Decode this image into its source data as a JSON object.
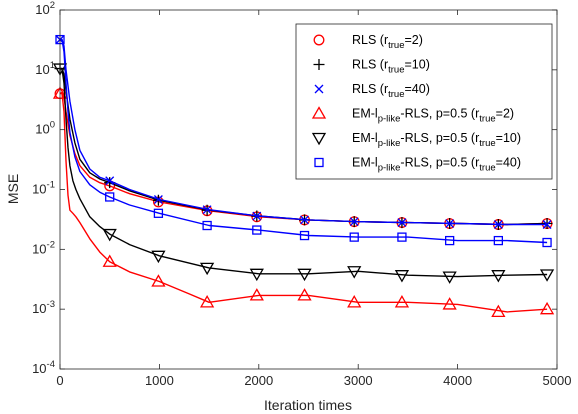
{
  "chart_data": {
    "type": "line",
    "xlabel": "Iteration times",
    "ylabel": "MSE",
    "xlim": [
      0,
      5000
    ],
    "ylim": [
      0.0001,
      100
    ],
    "y_scale": "log",
    "x_ticks": [
      0,
      1000,
      2000,
      3000,
      4000,
      5000
    ],
    "x_tick_labels": [
      "0",
      "1000",
      "2000",
      "3000",
      "4000",
      "5000"
    ],
    "y_ticks": [
      0.0001,
      0.001,
      0.01,
      0.1,
      1,
      10,
      100
    ],
    "y_tick_labels": [
      {
        "base": "10",
        "exp": "-4"
      },
      {
        "base": "10",
        "exp": "-3"
      },
      {
        "base": "10",
        "exp": "-2"
      },
      {
        "base": "10",
        "exp": "-1"
      },
      {
        "base": "10",
        "exp": "0"
      },
      {
        "base": "10",
        "exp": "1"
      },
      {
        "base": "10",
        "exp": "2"
      }
    ],
    "grid": false,
    "legend_position": "top-right",
    "series": [
      {
        "legend": {
          "main": "RLS (r",
          "sub": "true",
          "tail": "=2)"
        },
        "color": "#ff0000",
        "marker": "circle",
        "x": [
          0,
          20,
          40,
          60,
          100,
          150,
          200,
          300,
          400,
          500,
          700,
          1000,
          1500,
          2000,
          2500,
          3000,
          3500,
          4000,
          4500,
          4900
        ],
        "y": [
          4.0,
          4.2,
          3.5,
          2.0,
          0.8,
          0.4,
          0.25,
          0.16,
          0.13,
          0.115,
          0.085,
          0.062,
          0.044,
          0.035,
          0.031,
          0.029,
          0.028,
          0.027,
          0.026,
          0.027
        ],
        "marker_x": [
          0,
          500,
          990,
          1480,
          1980,
          2460,
          2960,
          3440,
          3920,
          4410,
          4900
        ],
        "marker_y": [
          4.0,
          0.115,
          0.062,
          0.044,
          0.035,
          0.031,
          0.029,
          0.028,
          0.027,
          0.026,
          0.027
        ]
      },
      {
        "legend": {
          "main": "RLS (r",
          "sub": "true",
          "tail": "=10)"
        },
        "color": "#000000",
        "marker": "plus",
        "x": [
          0,
          20,
          40,
          60,
          100,
          150,
          200,
          300,
          400,
          500,
          700,
          1000,
          1500,
          2000,
          2500,
          3000,
          3500,
          4000,
          4500,
          4900
        ],
        "y": [
          10.5,
          10.5,
          8.5,
          4.5,
          1.5,
          0.6,
          0.32,
          0.19,
          0.15,
          0.13,
          0.095,
          0.066,
          0.045,
          0.036,
          0.031,
          0.029,
          0.028,
          0.027,
          0.026,
          0.027
        ],
        "marker_x": [
          0,
          500,
          990,
          1480,
          1980,
          2460,
          2960,
          3440,
          3920,
          4410,
          4900
        ],
        "marker_y": [
          10.5,
          0.13,
          0.066,
          0.045,
          0.036,
          0.031,
          0.029,
          0.028,
          0.027,
          0.026,
          0.027
        ]
      },
      {
        "legend": {
          "main": "RLS (r",
          "sub": "true",
          "tail": "=40)"
        },
        "color": "#0000ff",
        "marker": "x",
        "x": [
          0,
          20,
          40,
          60,
          100,
          150,
          200,
          300,
          400,
          500,
          700,
          1000,
          1500,
          2000,
          2500,
          3000,
          3500,
          4000,
          4500,
          4900
        ],
        "y": [
          32,
          32,
          25,
          10,
          3.0,
          1.0,
          0.45,
          0.22,
          0.16,
          0.14,
          0.1,
          0.068,
          0.046,
          0.036,
          0.031,
          0.029,
          0.028,
          0.027,
          0.026,
          0.026
        ],
        "marker_x": [
          0,
          500,
          990,
          1480,
          1980,
          2460,
          2960,
          3440,
          3920,
          4410,
          4900
        ],
        "marker_y": [
          32,
          0.14,
          0.068,
          0.046,
          0.036,
          0.031,
          0.029,
          0.028,
          0.027,
          0.026,
          0.026
        ]
      },
      {
        "legend": {
          "main": "EM-l",
          "sub": "p-like",
          "tail": "-RLS, p=0.5 (r",
          "sub2": "true",
          "tail2": "=2)"
        },
        "color": "#ff0000",
        "marker": "triangle-up",
        "x": [
          0,
          20,
          40,
          60,
          80,
          100,
          130,
          160,
          200,
          300,
          400,
          500,
          700,
          1000,
          1300,
          1500,
          2000,
          2500,
          3000,
          3500,
          4000,
          4500,
          4900
        ],
        "y": [
          4.0,
          4.0,
          2.0,
          0.3,
          0.08,
          0.045,
          0.04,
          0.035,
          0.028,
          0.015,
          0.009,
          0.0062,
          0.0042,
          0.0029,
          0.0018,
          0.0013,
          0.0017,
          0.0017,
          0.0013,
          0.0013,
          0.0012,
          0.0009,
          0.001
        ],
        "marker_x": [
          0,
          500,
          990,
          1480,
          1980,
          2460,
          2960,
          3440,
          3920,
          4410,
          4900
        ],
        "marker_y": [
          4.0,
          0.0062,
          0.0029,
          0.0013,
          0.0017,
          0.0017,
          0.0013,
          0.0013,
          0.0012,
          0.0009,
          0.001
        ]
      },
      {
        "legend": {
          "main": "EM-l",
          "sub": "p-like",
          "tail": "-RLS, p=0.5 (r",
          "sub2": "true",
          "tail2": "=10)"
        },
        "color": "#000000",
        "marker": "triangle-down",
        "x": [
          0,
          20,
          40,
          60,
          80,
          100,
          130,
          160,
          200,
          300,
          400,
          500,
          700,
          1000,
          1500,
          2000,
          2500,
          3000,
          3500,
          4000,
          4500,
          4900
        ],
        "y": [
          10.5,
          10.5,
          6.0,
          1.5,
          0.5,
          0.25,
          0.14,
          0.1,
          0.07,
          0.035,
          0.024,
          0.018,
          0.012,
          0.0078,
          0.0049,
          0.0039,
          0.0039,
          0.0043,
          0.0037,
          0.0035,
          0.0037,
          0.0038
        ],
        "marker_x": [
          0,
          500,
          990,
          1480,
          1980,
          2460,
          2960,
          3440,
          3920,
          4410,
          4900
        ],
        "marker_y": [
          10.5,
          0.018,
          0.0078,
          0.0049,
          0.0039,
          0.0039,
          0.0043,
          0.0037,
          0.0035,
          0.0037,
          0.0038
        ]
      },
      {
        "legend": {
          "main": "EM-l",
          "sub": "p-like",
          "tail": "-RLS, p=0.5 (r",
          "sub2": "true",
          "tail2": "=40)"
        },
        "color": "#0000ff",
        "marker": "square",
        "x": [
          0,
          20,
          40,
          60,
          80,
          100,
          150,
          200,
          300,
          400,
          500,
          700,
          1000,
          1500,
          2000,
          2500,
          3000,
          3500,
          4000,
          4500,
          4900
        ],
        "y": [
          32,
          32,
          20,
          6.0,
          2.0,
          0.9,
          0.35,
          0.2,
          0.12,
          0.09,
          0.075,
          0.055,
          0.04,
          0.025,
          0.021,
          0.017,
          0.016,
          0.016,
          0.014,
          0.014,
          0.013
        ],
        "marker_x": [
          0,
          500,
          990,
          1480,
          1980,
          2460,
          2960,
          3440,
          3920,
          4410,
          4900
        ],
        "marker_y": [
          32,
          0.075,
          0.04,
          0.025,
          0.021,
          0.017,
          0.016,
          0.016,
          0.014,
          0.014,
          0.013
        ]
      }
    ]
  }
}
